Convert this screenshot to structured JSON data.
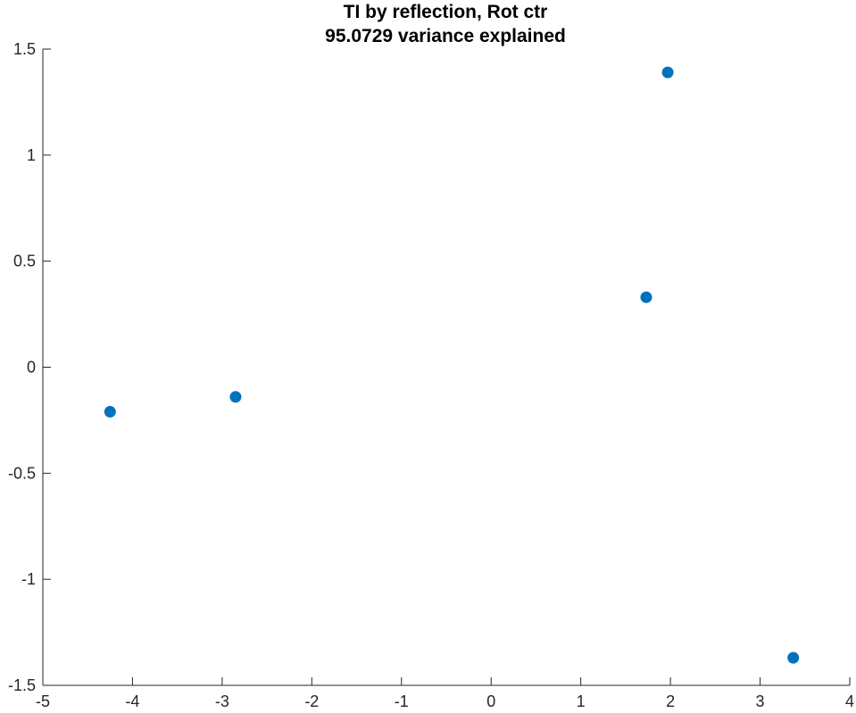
{
  "chart_data": {
    "type": "scatter",
    "title": "TI by reflection, Rot ctr",
    "subtitle": "95.0729 variance explained",
    "xlabel": "",
    "ylabel": "",
    "xlim": [
      -5,
      4
    ],
    "ylim": [
      -1.5,
      1.5
    ],
    "xticks": [
      -5,
      -4,
      -3,
      -2,
      -1,
      0,
      1,
      2,
      3,
      4
    ],
    "yticks": [
      -1.5,
      -1,
      -0.5,
      0,
      0.5,
      1,
      1.5
    ],
    "xtick_labels": [
      "-5",
      "-4",
      "-3",
      "-2",
      "-1",
      "0",
      "1",
      "2",
      "3",
      "4"
    ],
    "ytick_labels": [
      "-1.5",
      "-1",
      "-0.5",
      "0",
      "0.5",
      "1",
      "1.5"
    ],
    "grid": false,
    "legend": "none",
    "marker_color": "#0072BD",
    "series": [
      {
        "x": [
          -4.25,
          -2.85,
          1.73,
          1.97,
          3.37
        ],
        "y": [
          -0.21,
          -0.14,
          0.33,
          1.39,
          -1.37
        ]
      }
    ]
  }
}
